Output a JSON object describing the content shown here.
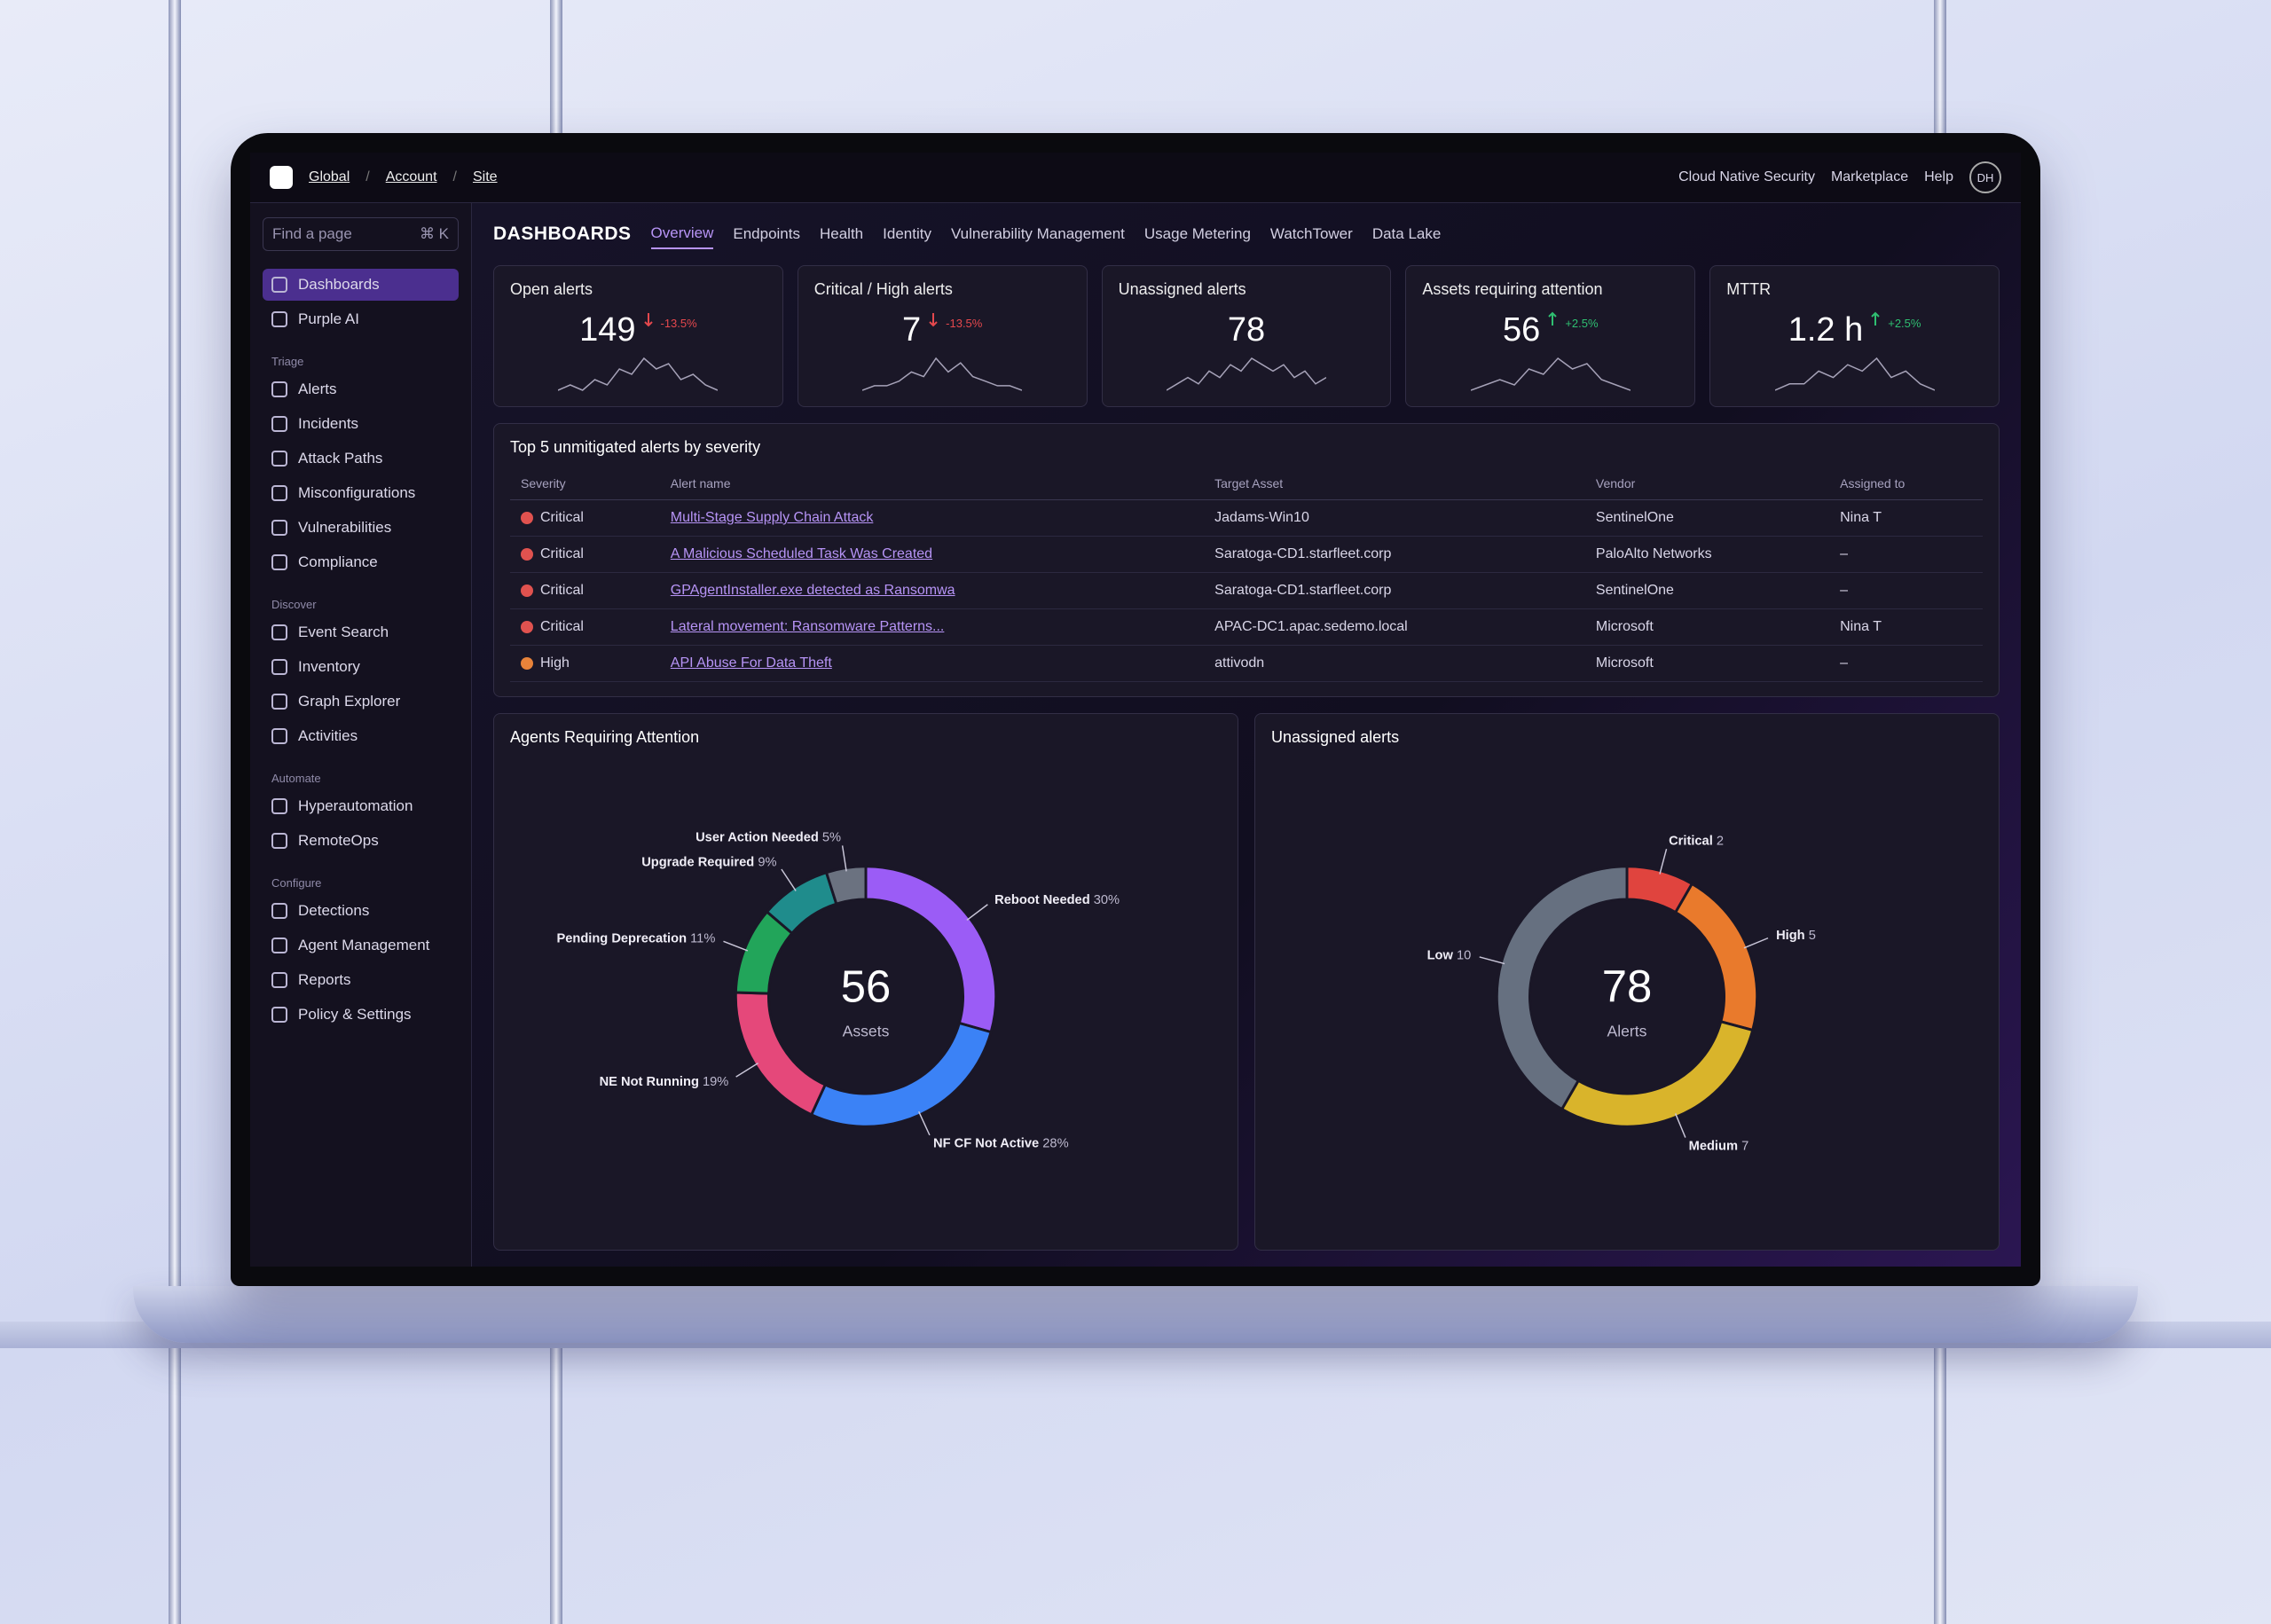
{
  "topbar": {
    "breadcrumb": [
      "Global",
      "Account",
      "Site"
    ],
    "actions": [
      "Cloud Native Security",
      "Marketplace",
      "Help"
    ],
    "avatar": "DH"
  },
  "sidebar": {
    "search": "Find a page",
    "shortcut": "⌘ K",
    "items": [
      "Dashboards",
      "Purple AI"
    ],
    "active_item": 0,
    "sections": [
      {
        "title": "Triage",
        "items": [
          "Alerts",
          "Incidents",
          "Attack Paths",
          "Misconfigurations",
          "Vulnerabilities",
          "Compliance"
        ]
      },
      {
        "title": "Discover",
        "items": [
          "Event Search",
          "Inventory",
          "Graph Explorer",
          "Activities"
        ]
      },
      {
        "title": "Automate",
        "items": [
          "Hyperautomation",
          "RemoteOps"
        ]
      },
      {
        "title": "Configure",
        "items": [
          "Detections",
          "Agent Management",
          "Reports",
          "Policy & Settings"
        ]
      }
    ]
  },
  "header": {
    "title": "DASHBOARDS",
    "tabs": [
      "Overview",
      "Endpoints",
      "Health",
      "Identity",
      "Vulnerability Management",
      "Usage Metering",
      "WatchTower",
      "Data Lake"
    ],
    "active_tab": 0
  },
  "kpis": [
    {
      "title": "Open alerts",
      "value": "149",
      "delta": "-13.5%",
      "direction": "down",
      "trend": [
        2,
        3,
        2,
        4,
        3,
        6,
        5,
        8,
        6,
        7,
        4,
        5,
        3,
        2
      ]
    },
    {
      "title": "Critical / High alerts",
      "value": "7",
      "delta": "-13.5%",
      "direction": "down",
      "trend": [
        1,
        2,
        2,
        3,
        5,
        4,
        8,
        5,
        7,
        4,
        3,
        2,
        2,
        1
      ]
    },
    {
      "title": "Unassigned alerts",
      "value": "78",
      "trend": [
        1,
        2,
        3,
        2,
        4,
        3,
        5,
        4,
        6,
        5,
        4,
        5,
        3,
        4,
        2,
        3
      ]
    },
    {
      "title": "Assets requiring attention",
      "value": "56",
      "delta": "+2.5%",
      "direction": "up",
      "trend": [
        1,
        2,
        3,
        2,
        5,
        4,
        7,
        5,
        6,
        3,
        2,
        1
      ]
    },
    {
      "title": "MTTR",
      "value": "1.2 h",
      "delta": "+2.5%",
      "direction": "up",
      "trend": [
        1,
        2,
        2,
        4,
        3,
        5,
        4,
        6,
        3,
        4,
        2,
        1
      ]
    }
  ],
  "table": {
    "title": "Top 5 unmitigated alerts by severity",
    "columns": [
      "Severity",
      "Alert name",
      "Target Asset",
      "Vendor",
      "Assigned to"
    ],
    "rows": [
      {
        "severity": "Critical",
        "color": "#e0524f",
        "alert": "Multi-Stage Supply Chain Attack",
        "asset": "Jadams-Win10",
        "vendor": "SentinelOne",
        "assigned": "Nina T"
      },
      {
        "severity": "Critical",
        "color": "#e0524f",
        "alert": "A Malicious Scheduled Task Was Created",
        "asset": "Saratoga-CD1.starfleet.corp",
        "vendor": "PaloAlto Networks",
        "assigned": "–"
      },
      {
        "severity": "Critical",
        "color": "#e0524f",
        "alert": "GPAgentInstaller.exe detected as Ransomwa",
        "asset": "Saratoga-CD1.starfleet.corp",
        "vendor": "SentinelOne",
        "assigned": "–"
      },
      {
        "severity": "Critical",
        "color": "#e0524f",
        "alert": "Lateral movement: Ransomware Patterns...",
        "asset": "APAC-DC1.apac.sedemo.local",
        "vendor": "Microsoft",
        "assigned": "Nina T"
      },
      {
        "severity": "High",
        "color": "#e8833a",
        "alert": "API Abuse For Data Theft",
        "asset": "attivodn",
        "vendor": "Microsoft",
        "assigned": "–"
      }
    ]
  },
  "chart_data": [
    {
      "type": "pie",
      "title": "Agents Requiring Attention",
      "categories": [
        "Reboot Needed",
        "NF CF Not Active",
        "NE Not Running",
        "Pending Deprecation",
        "Upgrade Required",
        "User Action Needed"
      ],
      "values": [
        30,
        28,
        19,
        11,
        9,
        5
      ],
      "value_labels": [
        "30%",
        "28%",
        "19%",
        "11%",
        "9%",
        "5%"
      ],
      "colors": [
        "#9b5cf6",
        "#3b82f6",
        "#e5487a",
        "#22a55a",
        "#1f8c8c",
        "#6b7280"
      ],
      "center_value": "56",
      "center_label": "Assets"
    },
    {
      "type": "pie",
      "title": "Unassigned alerts",
      "categories": [
        "Critical",
        "High",
        "Medium",
        "Low"
      ],
      "values": [
        2,
        5,
        7,
        10
      ],
      "colors": [
        "#e0443e",
        "#e97a2c",
        "#d9b42b",
        "#667080"
      ],
      "center_value": "78",
      "center_label": "Alerts"
    }
  ]
}
